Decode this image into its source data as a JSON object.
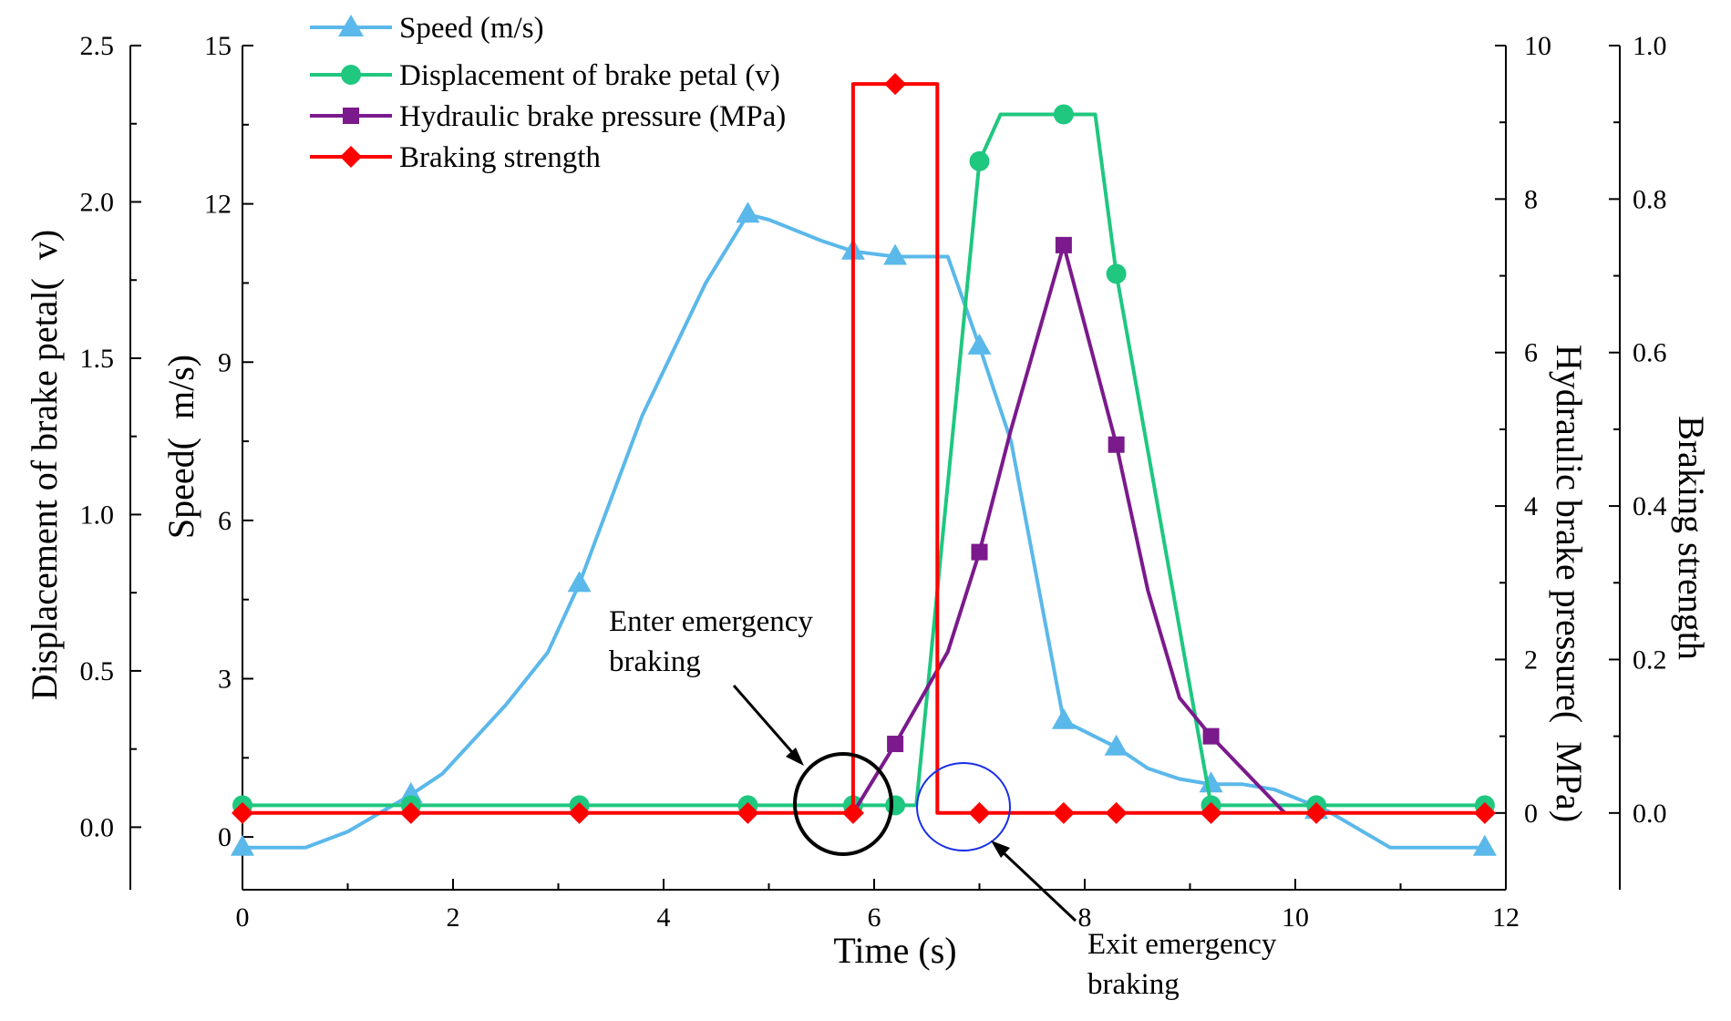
{
  "chart_data": {
    "type": "line",
    "xlabel": "Time (s)",
    "xlim": [
      0,
      12
    ],
    "x_ticks": [
      "0",
      "2",
      "4",
      "6",
      "8",
      "10",
      "12"
    ],
    "axes": {
      "displacement": {
        "label": "Displacement of brake petal(  v)",
        "lim": [
          -0.2,
          2.5
        ],
        "ticks": [
          "0.0",
          "0.5",
          "1.0",
          "1.5",
          "2.0",
          "2.5"
        ]
      },
      "speed": {
        "label": "Speed(  m/s)",
        "lim": [
          -1,
          15
        ],
        "ticks": [
          "0",
          "3",
          "6",
          "9",
          "12",
          "15"
        ]
      },
      "pressure": {
        "label": "Hydraulic brake pressure(  MPa)",
        "lim": [
          -1,
          10
        ],
        "ticks": [
          "0",
          "2",
          "4",
          "6",
          "8",
          "10"
        ]
      },
      "strength": {
        "label": "Braking strength",
        "lim": [
          -0.1,
          1.0
        ],
        "ticks": [
          "0.0",
          "0.2",
          "0.4",
          "0.6",
          "0.8",
          "1.0"
        ]
      }
    },
    "series": [
      {
        "name": "Speed (m/s)",
        "axis": "speed",
        "color": "#5bb8ea",
        "marker": "triangle",
        "x": [
          0,
          0.6,
          1.0,
          1.6,
          1.9,
          2.5,
          2.9,
          3.2,
          3.8,
          4.4,
          4.8,
          5.0,
          5.5,
          5.8,
          6.2,
          6.7,
          7.0,
          7.3,
          7.8,
          8.3,
          8.6,
          8.9,
          9.2,
          9.5,
          9.8,
          10.3,
          10.9,
          11.5,
          11.8
        ],
        "y": [
          -0.2,
          -0.2,
          0.1,
          0.8,
          1.2,
          2.5,
          3.5,
          4.8,
          8.0,
          10.5,
          11.8,
          11.7,
          11.3,
          11.1,
          11.0,
          11.0,
          9.3,
          7.5,
          2.2,
          1.7,
          1.3,
          1.1,
          1.0,
          1.0,
          0.9,
          0.5,
          -0.2,
          -0.2,
          -0.2
        ],
        "marker_x": [
          0,
          1.6,
          3.2,
          4.8,
          5.8,
          6.2,
          7.0,
          7.8,
          8.3,
          9.2,
          10.2,
          11.8
        ],
        "marker_y": [
          -0.2,
          0.8,
          4.8,
          11.8,
          11.1,
          11.0,
          9.3,
          2.2,
          1.7,
          1.0,
          0.5,
          -0.2
        ]
      },
      {
        "name": "Displacement of brake petal (v)",
        "axis": "displacement",
        "color": "#1fc77f",
        "marker": "circle",
        "x": [
          0,
          1.6,
          3.2,
          4.8,
          5.8,
          6.2,
          6.4,
          7.0,
          7.2,
          7.8,
          8.1,
          8.3,
          9.2,
          10.2,
          11.8
        ],
        "y": [
          0.07,
          0.07,
          0.07,
          0.07,
          0.07,
          0.07,
          0.07,
          2.13,
          2.28,
          2.28,
          2.28,
          1.77,
          0.07,
          0.07,
          0.07
        ],
        "marker_x": [
          0,
          1.6,
          3.2,
          4.8,
          5.8,
          6.2,
          7.0,
          7.8,
          8.3,
          9.2,
          10.2,
          11.8
        ],
        "marker_y": [
          0.07,
          0.07,
          0.07,
          0.07,
          0.07,
          0.07,
          2.13,
          2.28,
          1.77,
          0.07,
          0.07,
          0.07
        ]
      },
      {
        "name": "Hydraulic brake pressure (MPa)",
        "axis": "pressure",
        "color": "#7b1a8c",
        "marker": "square",
        "x": [
          5.8,
          6.2,
          6.7,
          7.0,
          7.3,
          7.8,
          8.3,
          8.6,
          8.9,
          9.2,
          9.9
        ],
        "y": [
          0,
          0.9,
          2.1,
          3.4,
          5.0,
          7.4,
          4.8,
          2.9,
          1.5,
          1.0,
          0
        ],
        "marker_x": [
          6.2,
          7.0,
          7.8,
          8.3,
          9.2
        ],
        "marker_y": [
          0.9,
          3.4,
          7.4,
          4.8,
          1.0
        ]
      },
      {
        "name": "Braking strength",
        "axis": "strength",
        "color": "#ff0000",
        "marker": "diamond",
        "x": [
          0,
          1.6,
          3.2,
          4.8,
          5.8,
          5.8,
          6.2,
          6.6,
          6.6,
          7.0,
          7.8,
          8.3,
          9.2,
          10.2,
          11.8
        ],
        "y": [
          0,
          0,
          0,
          0,
          0,
          0.95,
          0.95,
          0.95,
          0,
          0,
          0,
          0,
          0,
          0,
          0
        ],
        "marker_x": [
          0,
          1.6,
          3.2,
          4.8,
          5.8,
          6.2,
          7.0,
          7.8,
          8.3,
          9.2,
          10.2,
          11.8
        ],
        "marker_y": [
          0,
          0,
          0,
          0,
          0,
          0.95,
          0,
          0,
          0,
          0,
          0,
          0
        ]
      }
    ],
    "legend": {
      "placement": "top-left"
    },
    "annotations": [
      {
        "text": [
          "Enter emergency",
          "braking"
        ],
        "circle_color": "#000000"
      },
      {
        "text": [
          "Exit emergency",
          "braking"
        ],
        "circle_color": "#1a2ee8"
      }
    ],
    "grid": false
  }
}
